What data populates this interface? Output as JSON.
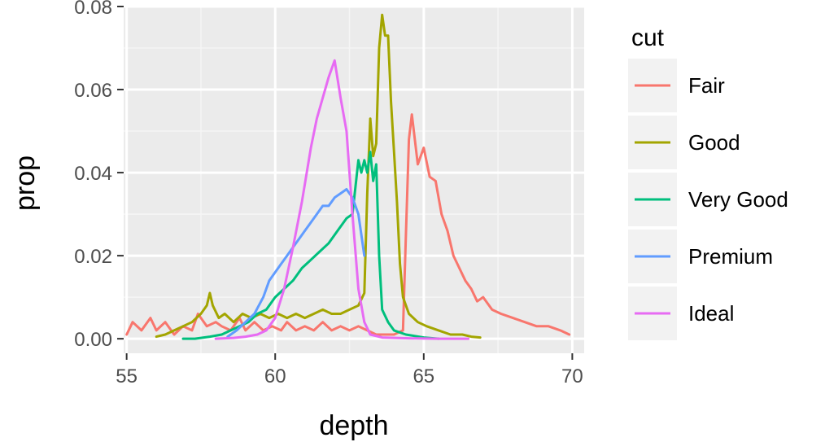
{
  "chart_data": {
    "type": "line",
    "xlabel": "depth",
    "ylabel": "prop",
    "xlim": [
      54.9,
      70.4
    ],
    "ylim": [
      -0.0035,
      0.08
    ],
    "x_ticks": [
      55,
      60,
      65,
      70
    ],
    "x_tick_labels": [
      "55",
      "60",
      "65",
      "70"
    ],
    "y_ticks": [
      0.0,
      0.02,
      0.04,
      0.06,
      0.08
    ],
    "y_tick_labels": [
      "0.00",
      "0.02",
      "0.04",
      "0.06",
      "0.08"
    ],
    "grid": true,
    "legend": {
      "title": "cut",
      "position": "right"
    },
    "series": [
      {
        "name": "Fair",
        "color": "#F8766D",
        "points": [
          [
            55.0,
            0.001
          ],
          [
            55.2,
            0.004
          ],
          [
            55.5,
            0.002
          ],
          [
            55.8,
            0.005
          ],
          [
            56.0,
            0.002
          ],
          [
            56.3,
            0.004
          ],
          [
            56.6,
            0.001
          ],
          [
            56.9,
            0.003
          ],
          [
            57.2,
            0.002
          ],
          [
            57.4,
            0.006
          ],
          [
            57.7,
            0.003
          ],
          [
            58.0,
            0.004
          ],
          [
            58.2,
            0.003
          ],
          [
            58.5,
            0.002
          ],
          [
            58.8,
            0.005
          ],
          [
            59.0,
            0.002
          ],
          [
            59.3,
            0.004
          ],
          [
            59.6,
            0.002
          ],
          [
            59.9,
            0.003
          ],
          [
            60.2,
            0.002
          ],
          [
            60.4,
            0.004
          ],
          [
            60.7,
            0.002
          ],
          [
            61.0,
            0.003
          ],
          [
            61.3,
            0.002
          ],
          [
            61.6,
            0.004
          ],
          [
            61.9,
            0.002
          ],
          [
            62.2,
            0.003
          ],
          [
            62.5,
            0.002
          ],
          [
            62.8,
            0.003
          ],
          [
            63.1,
            0.002
          ],
          [
            63.4,
            0.001
          ],
          [
            63.7,
            0.001
          ],
          [
            64.0,
            0.001
          ],
          [
            64.3,
            0.002
          ],
          [
            64.4,
            0.025
          ],
          [
            64.5,
            0.048
          ],
          [
            64.6,
            0.054
          ],
          [
            64.8,
            0.042
          ],
          [
            65.0,
            0.046
          ],
          [
            65.2,
            0.039
          ],
          [
            65.4,
            0.038
          ],
          [
            65.6,
            0.03
          ],
          [
            65.8,
            0.026
          ],
          [
            66.0,
            0.02
          ],
          [
            66.2,
            0.017
          ],
          [
            66.4,
            0.014
          ],
          [
            66.6,
            0.012
          ],
          [
            66.8,
            0.009
          ],
          [
            67.0,
            0.01
          ],
          [
            67.3,
            0.007
          ],
          [
            67.6,
            0.006
          ],
          [
            68.0,
            0.005
          ],
          [
            68.4,
            0.004
          ],
          [
            68.8,
            0.003
          ],
          [
            69.2,
            0.003
          ],
          [
            69.6,
            0.002
          ],
          [
            69.9,
            0.001
          ]
        ]
      },
      {
        "name": "Good",
        "color": "#A3A500",
        "points": [
          [
            56.0,
            0.0005
          ],
          [
            56.3,
            0.001
          ],
          [
            56.6,
            0.002
          ],
          [
            56.9,
            0.003
          ],
          [
            57.2,
            0.004
          ],
          [
            57.5,
            0.006
          ],
          [
            57.7,
            0.008
          ],
          [
            57.8,
            0.011
          ],
          [
            57.9,
            0.008
          ],
          [
            58.1,
            0.005
          ],
          [
            58.3,
            0.006
          ],
          [
            58.6,
            0.004
          ],
          [
            58.9,
            0.006
          ],
          [
            59.2,
            0.005
          ],
          [
            59.5,
            0.006
          ],
          [
            59.8,
            0.005
          ],
          [
            60.1,
            0.006
          ],
          [
            60.4,
            0.005
          ],
          [
            60.7,
            0.006
          ],
          [
            61.0,
            0.005
          ],
          [
            61.3,
            0.006
          ],
          [
            61.6,
            0.007
          ],
          [
            61.9,
            0.006
          ],
          [
            62.2,
            0.006
          ],
          [
            62.5,
            0.007
          ],
          [
            62.8,
            0.008
          ],
          [
            63.0,
            0.011
          ],
          [
            63.1,
            0.035
          ],
          [
            63.2,
            0.053
          ],
          [
            63.3,
            0.044
          ],
          [
            63.4,
            0.047
          ],
          [
            63.5,
            0.07
          ],
          [
            63.6,
            0.078
          ],
          [
            63.7,
            0.073
          ],
          [
            63.8,
            0.073
          ],
          [
            63.9,
            0.057
          ],
          [
            64.0,
            0.045
          ],
          [
            64.1,
            0.033
          ],
          [
            64.2,
            0.018
          ],
          [
            64.3,
            0.01
          ],
          [
            64.5,
            0.006
          ],
          [
            64.8,
            0.004
          ],
          [
            65.1,
            0.003
          ],
          [
            65.5,
            0.002
          ],
          [
            65.9,
            0.001
          ],
          [
            66.3,
            0.001
          ],
          [
            66.6,
            0.0005
          ],
          [
            66.9,
            0.0003
          ]
        ]
      },
      {
        "name": "Very Good",
        "color": "#00BF7D",
        "points": [
          [
            56.9,
            0.0
          ],
          [
            57.3,
            0.0
          ],
          [
            57.8,
            0.0005
          ],
          [
            58.2,
            0.001
          ],
          [
            58.5,
            0.002
          ],
          [
            58.8,
            0.003
          ],
          [
            59.1,
            0.004
          ],
          [
            59.4,
            0.006
          ],
          [
            59.7,
            0.007
          ],
          [
            60.0,
            0.01
          ],
          [
            60.3,
            0.012
          ],
          [
            60.6,
            0.014
          ],
          [
            60.9,
            0.017
          ],
          [
            61.2,
            0.019
          ],
          [
            61.5,
            0.021
          ],
          [
            61.8,
            0.023
          ],
          [
            62.1,
            0.026
          ],
          [
            62.4,
            0.029
          ],
          [
            62.6,
            0.03
          ],
          [
            62.8,
            0.043
          ],
          [
            62.9,
            0.04
          ],
          [
            63.0,
            0.043
          ],
          [
            63.1,
            0.04
          ],
          [
            63.2,
            0.045
          ],
          [
            63.3,
            0.038
          ],
          [
            63.4,
            0.042
          ],
          [
            63.5,
            0.02
          ],
          [
            63.6,
            0.007
          ],
          [
            63.8,
            0.004
          ],
          [
            64.0,
            0.002
          ],
          [
            64.4,
            0.001
          ],
          [
            65.0,
            0.0003
          ],
          [
            65.5,
            0.0
          ]
        ]
      },
      {
        "name": "Premium",
        "color": "#619CFF",
        "points": [
          [
            58.4,
            0.0005
          ],
          [
            58.7,
            0.002
          ],
          [
            59.0,
            0.004
          ],
          [
            59.3,
            0.006
          ],
          [
            59.6,
            0.01
          ],
          [
            59.8,
            0.014
          ],
          [
            60.0,
            0.016
          ],
          [
            60.2,
            0.018
          ],
          [
            60.4,
            0.02
          ],
          [
            60.6,
            0.022
          ],
          [
            60.8,
            0.024
          ],
          [
            61.0,
            0.026
          ],
          [
            61.2,
            0.028
          ],
          [
            61.4,
            0.03
          ],
          [
            61.6,
            0.032
          ],
          [
            61.8,
            0.032
          ],
          [
            62.0,
            0.034
          ],
          [
            62.2,
            0.035
          ],
          [
            62.4,
            0.036
          ],
          [
            62.6,
            0.034
          ],
          [
            62.8,
            0.03
          ],
          [
            63.0,
            0.02
          ]
        ]
      },
      {
        "name": "Ideal",
        "color": "#E76BF3",
        "points": [
          [
            58.0,
            0.0
          ],
          [
            58.6,
            0.0002
          ],
          [
            59.0,
            0.0005
          ],
          [
            59.4,
            0.001
          ],
          [
            59.7,
            0.002
          ],
          [
            60.0,
            0.005
          ],
          [
            60.3,
            0.012
          ],
          [
            60.6,
            0.022
          ],
          [
            60.9,
            0.033
          ],
          [
            61.2,
            0.046
          ],
          [
            61.4,
            0.053
          ],
          [
            61.6,
            0.058
          ],
          [
            61.8,
            0.063
          ],
          [
            62.0,
            0.067
          ],
          [
            62.2,
            0.058
          ],
          [
            62.4,
            0.05
          ],
          [
            62.6,
            0.03
          ],
          [
            62.8,
            0.012
          ],
          [
            63.0,
            0.004
          ],
          [
            63.2,
            0.001
          ],
          [
            63.6,
            0.0003
          ],
          [
            64.5,
            0.0001
          ],
          [
            65.5,
            0.0
          ],
          [
            66.5,
            0.0
          ]
        ]
      }
    ]
  }
}
